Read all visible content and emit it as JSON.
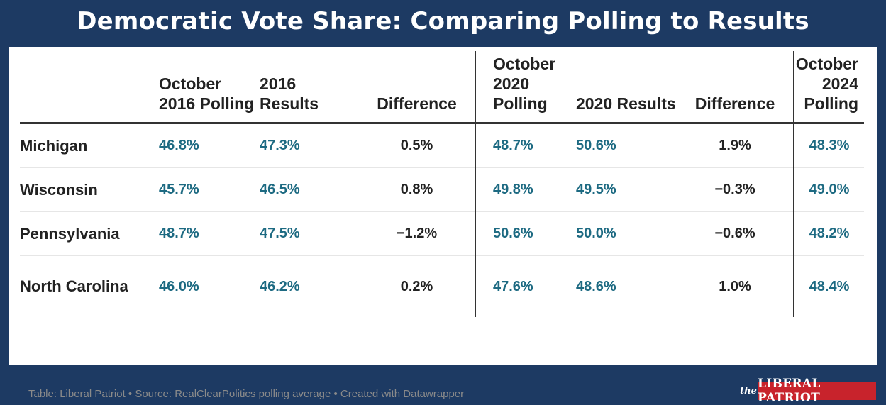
{
  "title": "Democratic Vote Share: Comparing Polling to Results",
  "footer": "Table: Liberal Patriot • Source: RealClearPolitics polling average • Created with Datawrapper",
  "logo": {
    "the": "the",
    "name": "LIBERAL PATRIOT"
  },
  "colors": {
    "background": "#1d3a63",
    "value": "#1d6a82",
    "logo_red": "#c8232c"
  },
  "chart_data": {
    "type": "table",
    "columns": [
      "",
      "October 2016 Polling",
      "2016 Results",
      "Difference",
      "October 2020 Polling",
      "2020 Results",
      "Difference",
      "October 2024 Polling"
    ],
    "rows": [
      [
        "Michigan",
        "46.8%",
        "47.3%",
        "0.5%",
        "48.7%",
        "50.6%",
        "1.9%",
        "48.3%"
      ],
      [
        "Wisconsin",
        "45.7%",
        "46.5%",
        "0.8%",
        "49.8%",
        "49.5%",
        "−0.3%",
        "49.0%"
      ],
      [
        "Pennsylvania",
        "48.7%",
        "47.5%",
        "−1.2%",
        "50.6%",
        "50.0%",
        "−0.6%",
        "48.2%"
      ],
      [
        "North Carolina",
        "46.0%",
        "46.2%",
        "0.2%",
        "47.6%",
        "48.6%",
        "1.0%",
        "48.4%"
      ]
    ]
  }
}
